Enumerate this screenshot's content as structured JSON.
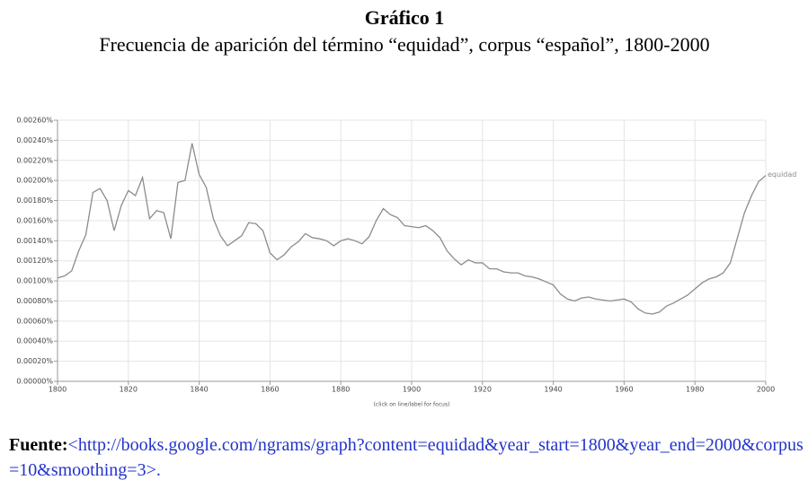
{
  "chart_data": {
    "type": "line",
    "title": "Gráfico 1",
    "subtitle": "Frecuencia de aparición del término “equidad”, corpus “español”, 1800-2000",
    "note": "(click on line/label for focus)",
    "x": [
      1800,
      1802,
      1804,
      1806,
      1808,
      1810,
      1812,
      1814,
      1816,
      1818,
      1820,
      1822,
      1824,
      1826,
      1828,
      1830,
      1832,
      1834,
      1836,
      1838,
      1840,
      1842,
      1844,
      1846,
      1848,
      1850,
      1852,
      1854,
      1856,
      1858,
      1860,
      1862,
      1864,
      1866,
      1868,
      1870,
      1872,
      1874,
      1876,
      1878,
      1880,
      1882,
      1884,
      1886,
      1888,
      1890,
      1892,
      1894,
      1896,
      1898,
      1900,
      1902,
      1904,
      1906,
      1908,
      1910,
      1912,
      1914,
      1916,
      1918,
      1920,
      1922,
      1924,
      1926,
      1928,
      1930,
      1932,
      1934,
      1936,
      1938,
      1940,
      1942,
      1944,
      1946,
      1948,
      1950,
      1952,
      1954,
      1956,
      1958,
      1960,
      1962,
      1964,
      1966,
      1968,
      1970,
      1972,
      1974,
      1976,
      1978,
      1980,
      1982,
      1984,
      1986,
      1988,
      1990,
      1992,
      1994,
      1996,
      1998,
      2000
    ],
    "series": [
      {
        "name": "equidad",
        "color": "#8c8c8c",
        "values": [
          0.00103,
          0.00105,
          0.0011,
          0.0013,
          0.00146,
          0.00188,
          0.00192,
          0.0018,
          0.0015,
          0.00175,
          0.0019,
          0.00185,
          0.00203,
          0.00162,
          0.0017,
          0.00168,
          0.00142,
          0.00198,
          0.002,
          0.00237,
          0.00206,
          0.00193,
          0.00162,
          0.00145,
          0.00135,
          0.0014,
          0.00145,
          0.00158,
          0.00157,
          0.0015,
          0.00128,
          0.00121,
          0.00126,
          0.00134,
          0.00139,
          0.00147,
          0.00143,
          0.00142,
          0.0014,
          0.00135,
          0.0014,
          0.00142,
          0.0014,
          0.00137,
          0.00144,
          0.0016,
          0.00172,
          0.00166,
          0.00163,
          0.00155,
          0.00154,
          0.00153,
          0.00155,
          0.0015,
          0.00143,
          0.0013,
          0.00122,
          0.00116,
          0.00121,
          0.00118,
          0.00118,
          0.00112,
          0.00112,
          0.00109,
          0.00108,
          0.00108,
          0.00105,
          0.00104,
          0.00102,
          0.00099,
          0.00096,
          0.00087,
          0.00082,
          0.0008,
          0.00083,
          0.00084,
          0.00082,
          0.00081,
          0.0008,
          0.00081,
          0.00082,
          0.00079,
          0.00072,
          0.00068,
          0.00067,
          0.00069,
          0.00075,
          0.00078,
          0.00082,
          0.00086,
          0.00092,
          0.00098,
          0.00102,
          0.00104,
          0.00108,
          0.00118,
          0.00143,
          0.00168,
          0.00185,
          0.00199,
          0.00205
        ]
      }
    ],
    "xlim": [
      1800,
      2000
    ],
    "xticks": [
      1800,
      1820,
      1840,
      1860,
      1880,
      1900,
      1920,
      1940,
      1960,
      1980,
      2000
    ],
    "ylim": [
      0,
      0.0026
    ],
    "yticks": [
      {
        "value": 0,
        "label": "0.00000%"
      },
      {
        "value": 0.0002,
        "label": "0.00020%"
      },
      {
        "value": 0.0004,
        "label": "0.00040%"
      },
      {
        "value": 0.0006,
        "label": "0.00060%"
      },
      {
        "value": 0.0008,
        "label": "0.00080%"
      },
      {
        "value": 0.001,
        "label": "0.00100%"
      },
      {
        "value": 0.0012,
        "label": "0.00120%"
      },
      {
        "value": 0.0014,
        "label": "0.00140%"
      },
      {
        "value": 0.0016,
        "label": "0.00160%"
      },
      {
        "value": 0.0018,
        "label": "0.00180%"
      },
      {
        "value": 0.002,
        "label": "0.00200%"
      },
      {
        "value": 0.0022,
        "label": "0.00220%"
      },
      {
        "value": 0.0024,
        "label": "0.00240%"
      },
      {
        "value": 0.0026,
        "label": "0.00260%"
      }
    ],
    "grid": true,
    "source_label": "Fuente:",
    "source_text": "<http://books.google.com/ngrams/graph?content=equidad&year_start=1800&year_end=2000&corpus=10&smoothing=3>."
  }
}
